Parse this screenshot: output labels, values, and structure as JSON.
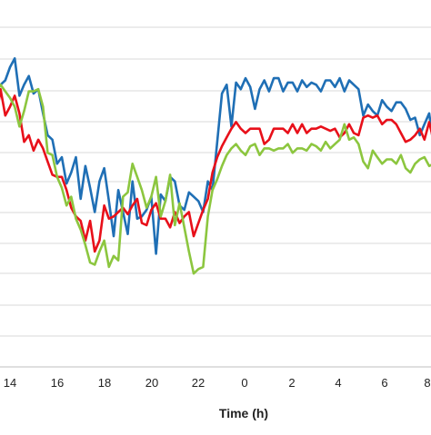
{
  "chart_data": {
    "type": "line",
    "xlabel": "Time (h)",
    "x_ticks": [
      "14",
      "16",
      "18",
      "20",
      "22",
      "0",
      "2",
      "4",
      "6",
      "8"
    ],
    "grid": true,
    "legend": "none",
    "x_hours": [
      13.2,
      13.4,
      13.6,
      13.8,
      14.0,
      14.2,
      14.4,
      14.6,
      14.8,
      15.0,
      15.2,
      15.4,
      15.6,
      15.8,
      16.0,
      16.2,
      16.4,
      16.6,
      16.8,
      17.0,
      17.2,
      17.4,
      17.6,
      17.8,
      18.0,
      18.2,
      18.4,
      18.6,
      18.8,
      19.0,
      19.2,
      19.4,
      19.6,
      19.8,
      20.0,
      20.2,
      20.4,
      20.6,
      20.8,
      21.0,
      21.2,
      21.4,
      21.6,
      21.8,
      22.0,
      22.2,
      22.4,
      22.6,
      22.8,
      23.0,
      23.2,
      23.4,
      23.6,
      23.8,
      24.0,
      24.2,
      24.4,
      24.6,
      24.8,
      25.0,
      25.2,
      25.4,
      25.6,
      25.8,
      26.0,
      26.2,
      26.4,
      26.6,
      26.8,
      27.0,
      27.2,
      27.4,
      27.6,
      27.8,
      28.0,
      28.2,
      28.4,
      28.6,
      28.8,
      29.0,
      29.2,
      29.4,
      29.6,
      29.8,
      30.0,
      30.2,
      30.4,
      30.6,
      30.8,
      31.0,
      31.2,
      31.4,
      31.6,
      31.8,
      32.0
    ],
    "series": [
      {
        "color": "#1F6FB5",
        "values": [
          103,
          99,
          100,
          102,
          108,
          112,
          95,
          100,
          104,
          96,
          98,
          87,
          77,
          75,
          64,
          67,
          55,
          60,
          67,
          48,
          63,
          53,
          42,
          56,
          62,
          47,
          31,
          52,
          42,
          32,
          56,
          39,
          40,
          43,
          49,
          23,
          50,
          47,
          58,
          56,
          45,
          43,
          51,
          49,
          47,
          42,
          56,
          52,
          74,
          96,
          100,
          81,
          101,
          98,
          103,
          99,
          89,
          98,
          102,
          97,
          103,
          103,
          97,
          101,
          101,
          97,
          102,
          99,
          101,
          100,
          97,
          102,
          102,
          99,
          103,
          97,
          102,
          100,
          98,
          86,
          91,
          88,
          86,
          93,
          90,
          88,
          92,
          92,
          89,
          84,
          85,
          77,
          82,
          87,
          71
        ]
      },
      {
        "color": "#E8101A",
        "values": [
          92,
          84,
          98,
          86,
          90,
          95,
          87,
          74,
          77,
          70,
          75,
          71,
          65,
          59,
          58,
          58,
          52,
          44,
          40,
          38,
          29,
          38,
          24,
          29,
          45,
          39,
          40,
          42,
          44,
          41,
          45,
          48,
          37,
          36,
          43,
          46,
          39,
          39,
          35,
          42,
          37,
          40,
          42,
          31,
          37,
          43,
          48,
          60,
          67,
          72,
          76,
          80,
          83,
          80,
          78,
          80,
          80,
          80,
          73,
          75,
          80,
          80,
          80,
          78,
          82,
          78,
          82,
          78,
          80,
          80,
          81,
          80,
          79,
          80,
          76,
          78,
          82,
          78,
          77,
          85,
          86,
          85,
          86,
          82,
          84,
          84,
          82,
          78,
          74,
          75,
          77,
          80,
          75,
          83,
          74
        ]
      },
      {
        "color": "#8CC63F",
        "values": [
          86,
          96,
          100,
          97,
          94,
          90,
          81,
          88,
          97,
          97,
          98,
          90,
          69,
          68,
          58,
          53,
          45,
          49,
          39,
          34,
          27,
          19,
          18,
          24,
          29,
          17,
          22,
          20,
          49,
          51,
          64,
          58,
          52,
          44,
          49,
          58,
          40,
          47,
          59,
          36,
          46,
          35,
          24,
          14,
          16,
          17,
          40,
          52,
          57,
          63,
          68,
          71,
          73,
          70,
          68,
          72,
          73,
          68,
          71,
          71,
          70,
          71,
          71,
          73,
          69,
          71,
          71,
          70,
          73,
          72,
          70,
          74,
          71,
          73,
          75,
          82,
          75,
          76,
          73,
          65,
          62,
          70,
          67,
          64,
          66,
          66,
          64,
          68,
          62,
          60,
          64,
          66,
          67,
          63,
          64
        ]
      }
    ]
  }
}
